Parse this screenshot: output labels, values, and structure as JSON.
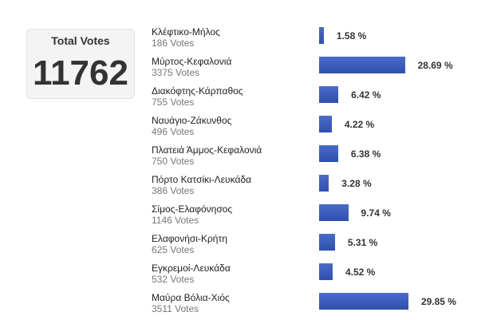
{
  "total": {
    "label": "Total Votes",
    "value": 11762
  },
  "options": [
    {
      "name": "Κλέφτικο-Μήλος",
      "votes": "186 Votes",
      "percent": 1.58,
      "percent_label": "1.58 %"
    },
    {
      "name": "Μύρτος-Κεφαλονιά",
      "votes": "3375 Votes",
      "percent": 28.69,
      "percent_label": "28.69 %"
    },
    {
      "name": "Διακόφτης-Κάρπαθος",
      "votes": "755 Votes",
      "percent": 6.42,
      "percent_label": "6.42 %"
    },
    {
      "name": "Ναυάγιο-Ζάκυνθος",
      "votes": "496 Votes",
      "percent": 4.22,
      "percent_label": "4.22 %"
    },
    {
      "name": "Πλατειά Άμμος-Κεφαλονιά",
      "votes": "750 Votes",
      "percent": 6.38,
      "percent_label": "6.38 %"
    },
    {
      "name": "Πόρτο Κατσίκι-Λευκάδα",
      "votes": "386 Votes",
      "percent": 3.28,
      "percent_label": "3.28 %"
    },
    {
      "name": "Σίμος-Ελαφόνησος",
      "votes": "1146 Votes",
      "percent": 9.74,
      "percent_label": "9.74 %"
    },
    {
      "name": "Ελαφονήσι-Κρήτη",
      "votes": "625 Votes",
      "percent": 5.31,
      "percent_label": "5.31 %"
    },
    {
      "name": "Εγκρεμοί-Λευκάδα",
      "votes": "532 Votes",
      "percent": 4.52,
      "percent_label": "4.52 %"
    },
    {
      "name": "Μαύρα Βόλια-Χιός",
      "votes": "3511 Votes",
      "percent": 29.85,
      "percent_label": "29.85 %"
    }
  ]
}
